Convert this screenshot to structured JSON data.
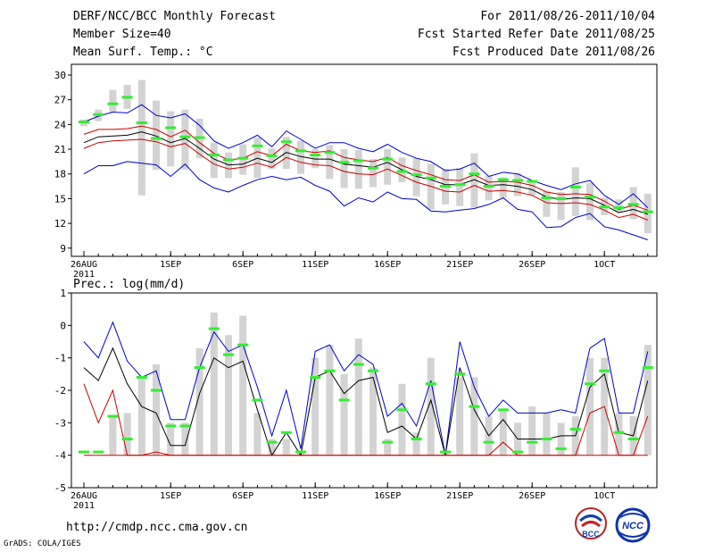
{
  "header": {
    "title": "DERF/NCC/BCC Monthly Forecast",
    "member_size": "Member Size=40",
    "variable": "Mean Surf. Temp.: °C",
    "period": "For 2011/08/26-2011/10/04",
    "start_date": "Fcst Started Refer Date 2011/08/25",
    "produced_date": "Fcst Produced Date 2011/08/26"
  },
  "footer": {
    "url": "http://cmdp.ncc.cma.gov.cn",
    "credit": "GrADS: COLA/IGES",
    "logo_bcc": "BCC",
    "logo_ncc": "NCC"
  },
  "colors": {
    "envelope": "#0000cc",
    "percentile": "#cc0000",
    "mean": "#000000",
    "box": "#d3d3d3",
    "median": "#33ee33"
  },
  "chart_data": [
    {
      "type": "line",
      "id": "temperature",
      "title": "Mean Surf. Temp.: °C",
      "x": [
        "08/26",
        "08/27",
        "08/28",
        "08/29",
        "08/30",
        "08/31",
        "09/01",
        "09/02",
        "09/03",
        "09/04",
        "09/05",
        "09/06",
        "09/07",
        "09/08",
        "09/09",
        "09/10",
        "09/11",
        "09/12",
        "09/13",
        "09/14",
        "09/15",
        "09/16",
        "09/17",
        "09/18",
        "09/19",
        "09/20",
        "09/21",
        "09/22",
        "09/23",
        "09/24",
        "09/25",
        "09/26",
        "09/27",
        "09/28",
        "09/29",
        "09/30",
        "10/01",
        "10/02",
        "10/03",
        "10/04"
      ],
      "x_ticks": [
        "26AUG\n2011",
        "1SEP",
        "6SEP",
        "11SEP",
        "16SEP",
        "21SEP",
        "26SEP",
        "1OCT"
      ],
      "y_ticks": [
        9,
        12,
        15,
        18,
        21,
        24,
        27,
        30
      ],
      "ylim": [
        8,
        31.3
      ],
      "series": [
        {
          "name": "max",
          "values": [
            24.3,
            25.0,
            25.5,
            25.4,
            26.4,
            25.1,
            24.8,
            25.3,
            23.9,
            22.0,
            21.1,
            21.8,
            22.7,
            21.3,
            23.2,
            22.2,
            21.1,
            21.8,
            21.8,
            21.1,
            20.7,
            21.6,
            20.6,
            19.9,
            19.5,
            18.4,
            18.6,
            19.3,
            17.7,
            18.2,
            18.0,
            17.2,
            16.6,
            16.1,
            16.8,
            17.2,
            15.4,
            14.3,
            15.6,
            13.9
          ]
        },
        {
          "name": "p90",
          "values": [
            22.8,
            23.4,
            23.4,
            23.5,
            23.8,
            23.4,
            22.5,
            23.3,
            21.8,
            20.5,
            19.7,
            19.9,
            20.7,
            20.2,
            21.6,
            20.8,
            20.6,
            20.8,
            20.0,
            19.7,
            19.5,
            20.0,
            19.0,
            18.4,
            17.9,
            17.3,
            17.2,
            17.9,
            17.0,
            17.1,
            17.0,
            16.6,
            15.8,
            15.5,
            15.6,
            15.5,
            14.7,
            13.7,
            14.2,
            13.6
          ]
        },
        {
          "name": "mean",
          "values": [
            21.8,
            22.5,
            22.6,
            22.7,
            23.1,
            22.6,
            21.8,
            22.3,
            21.1,
            19.8,
            19.1,
            19.2,
            19.9,
            19.4,
            20.6,
            20.1,
            19.8,
            19.8,
            19.2,
            19.0,
            18.8,
            19.4,
            18.5,
            17.7,
            17.3,
            16.7,
            16.7,
            17.3,
            16.6,
            16.7,
            16.5,
            16.1,
            15.2,
            14.9,
            15.1,
            15.0,
            14.2,
            13.3,
            13.7,
            13.1
          ]
        },
        {
          "name": "p10",
          "values": [
            21.1,
            21.8,
            22.0,
            22.1,
            22.2,
            21.9,
            21.3,
            21.7,
            20.4,
            19.2,
            18.6,
            18.8,
            19.3,
            18.8,
            20.0,
            19.4,
            19.1,
            19.0,
            18.3,
            18.0,
            17.9,
            18.6,
            17.8,
            17.0,
            16.5,
            15.9,
            15.8,
            16.6,
            15.9,
            16.0,
            15.8,
            15.4,
            14.5,
            14.4,
            14.5,
            14.3,
            13.6,
            12.7,
            13.1,
            12.4
          ]
        },
        {
          "name": "min",
          "values": [
            18.0,
            19.0,
            19.0,
            19.5,
            19.3,
            19.1,
            17.7,
            19.2,
            17.3,
            16.3,
            15.8,
            16.6,
            17.3,
            17.7,
            17.3,
            17.6,
            16.6,
            15.9,
            14.1,
            15.1,
            14.6,
            15.8,
            15.0,
            14.9,
            13.5,
            13.4,
            13.6,
            13.8,
            14.3,
            15.1,
            13.7,
            13.4,
            11.5,
            11.6,
            12.7,
            13.2,
            11.6,
            11.2,
            10.6,
            10.0
          ]
        }
      ],
      "boxes": [
        {
          "lo": 23.8,
          "hi": 24.6
        },
        {
          "lo": 24.4,
          "hi": 25.8
        },
        {
          "lo": 25.5,
          "hi": 28.2
        },
        {
          "lo": 25.9,
          "hi": 28.8
        },
        {
          "lo": 15.4,
          "hi": 29.4
        },
        {
          "lo": 18.5,
          "hi": 26.9
        },
        {
          "lo": 18.9,
          "hi": 25.6
        },
        {
          "lo": 18.5,
          "hi": 25.8
        },
        {
          "lo": 19.9,
          "hi": 24.7
        },
        {
          "lo": 17.5,
          "hi": 21.8
        },
        {
          "lo": 17.5,
          "hi": 20.6
        },
        {
          "lo": 17.9,
          "hi": 21.6
        },
        {
          "lo": 17.5,
          "hi": 22.4
        },
        {
          "lo": 18.6,
          "hi": 21.1
        },
        {
          "lo": 18.6,
          "hi": 22.5
        },
        {
          "lo": 18.0,
          "hi": 22.0
        },
        {
          "lo": 18.7,
          "hi": 21.0
        },
        {
          "lo": 17.4,
          "hi": 21.5
        },
        {
          "lo": 16.3,
          "hi": 21.0
        },
        {
          "lo": 16.2,
          "hi": 20.9
        },
        {
          "lo": 16.4,
          "hi": 19.8
        },
        {
          "lo": 16.7,
          "hi": 21.0
        },
        {
          "lo": 17.0,
          "hi": 20.0
        },
        {
          "lo": 15.3,
          "hi": 19.9
        },
        {
          "lo": 13.7,
          "hi": 19.2
        },
        {
          "lo": 14.3,
          "hi": 18.6
        },
        {
          "lo": 14.1,
          "hi": 18.7
        },
        {
          "lo": 13.9,
          "hi": 20.5
        },
        {
          "lo": 14.8,
          "hi": 17.8
        },
        {
          "lo": 15.1,
          "hi": 17.6
        },
        {
          "lo": 15.3,
          "hi": 18.1
        },
        {
          "lo": 15.4,
          "hi": 17.0
        },
        {
          "lo": 12.8,
          "hi": 15.9
        },
        {
          "lo": 12.4,
          "hi": 15.8
        },
        {
          "lo": 12.9,
          "hi": 18.8
        },
        {
          "lo": 12.4,
          "hi": 16.9
        },
        {
          "lo": 13.0,
          "hi": 15.1
        },
        {
          "lo": 13.4,
          "hi": 14.9
        },
        {
          "lo": 12.5,
          "hi": 16.4
        },
        {
          "lo": 10.8,
          "hi": 15.6
        }
      ],
      "medians": [
        24.3,
        25.2,
        26.5,
        27.3,
        24.2,
        22.3,
        23.6,
        22.5,
        22.4,
        20.3,
        19.7,
        19.9,
        21.4,
        20.2,
        21.9,
        20.8,
        20.3,
        20.6,
        19.4,
        19.6,
        18.7,
        19.8,
        18.3,
        17.9,
        17.5,
        16.5,
        16.7,
        18.0,
        16.5,
        17.3,
        17.2,
        17.1,
        15.1,
        15.0,
        16.4,
        15.2,
        14.0,
        13.9,
        14.3,
        13.4
      ]
    },
    {
      "type": "line",
      "id": "precipitation",
      "title": "Prec.: log(mm/d)",
      "x": [
        "08/26",
        "08/27",
        "08/28",
        "08/29",
        "08/30",
        "08/31",
        "09/01",
        "09/02",
        "09/03",
        "09/04",
        "09/05",
        "09/06",
        "09/07",
        "09/08",
        "09/09",
        "09/10",
        "09/11",
        "09/12",
        "09/13",
        "09/14",
        "09/15",
        "09/16",
        "09/17",
        "09/18",
        "09/19",
        "09/20",
        "09/21",
        "09/22",
        "09/23",
        "09/24",
        "09/25",
        "09/26",
        "09/27",
        "09/28",
        "09/29",
        "09/30",
        "10/01",
        "10/02",
        "10/03",
        "10/04"
      ],
      "x_ticks": [
        "26AUG\n2011",
        "1SEP",
        "6SEP",
        "11SEP",
        "16SEP",
        "21SEP",
        "26SEP",
        "1OCT"
      ],
      "y_ticks": [
        -5,
        -4,
        -3,
        -2,
        -1,
        0,
        1
      ],
      "ylim": [
        -5,
        1
      ],
      "floor": -4,
      "series": [
        {
          "name": "max",
          "values": [
            -0.5,
            -1.0,
            0.1,
            -1.1,
            -1.6,
            -1.4,
            -2.9,
            -2.9,
            -1.3,
            -0.2,
            -0.8,
            -0.6,
            -1.9,
            -3.4,
            -2.0,
            -3.8,
            -0.8,
            -0.6,
            -1.4,
            -0.9,
            -1.2,
            -2.8,
            -2.4,
            -3.1,
            -1.7,
            -4.0,
            -0.5,
            -1.9,
            -2.8,
            -2.3,
            -2.7,
            -2.7,
            -2.7,
            -2.6,
            -2.7,
            -0.7,
            -0.4,
            -2.7,
            -2.7,
            -0.8
          ]
        },
        {
          "name": "mean",
          "values": [
            -1.3,
            -1.7,
            -0.7,
            -1.8,
            -2.5,
            -2.7,
            -3.7,
            -3.7,
            -2.1,
            -1.0,
            -1.3,
            -1.1,
            -2.6,
            -4.0,
            -3.3,
            -4.0,
            -1.6,
            -1.4,
            -2.1,
            -1.7,
            -1.6,
            -3.3,
            -3.1,
            -3.5,
            -2.3,
            -4.0,
            -1.3,
            -2.6,
            -3.4,
            -2.9,
            -3.5,
            -3.5,
            -3.5,
            -3.4,
            -3.4,
            -1.9,
            -1.5,
            -3.3,
            -3.4,
            -1.7
          ]
        },
        {
          "name": "p10",
          "values": [
            -1.8,
            -3.0,
            -2.0,
            -4.0,
            -4.0,
            -3.9,
            -4.0,
            -4.0,
            -4.0,
            -4.0,
            -4.0,
            -4.0,
            -4.0,
            -4.0,
            -4.0,
            -4.0,
            -4.0,
            -4.0,
            -4.0,
            -4.0,
            -4.0,
            -4.0,
            -4.0,
            -4.0,
            -4.0,
            -4.0,
            -4.0,
            -4.0,
            -4.0,
            -3.6,
            -4.0,
            -4.0,
            -4.0,
            -4.0,
            -4.0,
            -2.7,
            -2.5,
            -4.0,
            -4.0,
            -2.8
          ]
        },
        {
          "name": "floor",
          "values": [
            -4.0,
            -4.0,
            -4.0,
            -4.0,
            -4.0,
            -4.0,
            -4.0,
            -4.0,
            -4.0,
            -4.0,
            -4.0,
            -4.0,
            -4.0,
            -4.0,
            -4.0,
            -4.0,
            -4.0,
            -4.0,
            -4.0,
            -4.0,
            -4.0,
            -4.0,
            -4.0,
            -4.0,
            -4.0,
            -4.0,
            -4.0,
            -4.0,
            -4.0,
            -4.0,
            -4.0,
            -4.0,
            -4.0,
            -4.0,
            -4.0,
            -4.0,
            -4.0,
            -4.0,
            -4.0,
            -4.0
          ]
        }
      ],
      "boxes": [
        {
          "lo": -4,
          "hi": -4
        },
        {
          "lo": -4,
          "hi": -4
        },
        {
          "lo": -4,
          "hi": -2.8
        },
        {
          "lo": -4,
          "hi": -2.7
        },
        {
          "lo": -4,
          "hi": -1.6
        },
        {
          "lo": -4,
          "hi": -1.2
        },
        {
          "lo": -4,
          "hi": -3.0
        },
        {
          "lo": -4,
          "hi": -3.0
        },
        {
          "lo": -4,
          "hi": -0.7
        },
        {
          "lo": -4,
          "hi": 0.4
        },
        {
          "lo": -4,
          "hi": -0.3
        },
        {
          "lo": -4,
          "hi": 0.3
        },
        {
          "lo": -4,
          "hi": -2.7
        },
        {
          "lo": -4,
          "hi": -3.5
        },
        {
          "lo": -4,
          "hi": -3.5
        },
        {
          "lo": -4,
          "hi": -3.9
        },
        {
          "lo": -4,
          "hi": -1.0
        },
        {
          "lo": -4,
          "hi": -0.6
        },
        {
          "lo": -4,
          "hi": -1.5
        },
        {
          "lo": -4,
          "hi": -0.4
        },
        {
          "lo": -4,
          "hi": -1.3
        },
        {
          "lo": -4,
          "hi": -3.5
        },
        {
          "lo": -4,
          "hi": -1.8
        },
        {
          "lo": -4,
          "hi": -3.3
        },
        {
          "lo": -4,
          "hi": -1.0
        },
        {
          "lo": -4,
          "hi": -3.9
        },
        {
          "lo": -4,
          "hi": -1.6
        },
        {
          "lo": -4,
          "hi": -1.6
        },
        {
          "lo": -4,
          "hi": -2.8
        },
        {
          "lo": -4,
          "hi": -2.6
        },
        {
          "lo": -4,
          "hi": -3.0
        },
        {
          "lo": -4,
          "hi": -2.5
        },
        {
          "lo": -4,
          "hi": -2.7
        },
        {
          "lo": -4,
          "hi": -3.0
        },
        {
          "lo": -4,
          "hi": -2.8
        },
        {
          "lo": -4,
          "hi": -1.0
        },
        {
          "lo": -4,
          "hi": -1.0
        },
        {
          "lo": -4,
          "hi": -2.7
        },
        {
          "lo": -4,
          "hi": -2.8
        },
        {
          "lo": -4,
          "hi": -0.6
        }
      ],
      "medians": [
        -3.9,
        -3.9,
        -2.8,
        -3.5,
        -1.6,
        -2.0,
        -3.1,
        -3.1,
        -1.3,
        -0.1,
        -0.9,
        -0.6,
        -2.3,
        -3.6,
        -3.3,
        -3.9,
        -1.6,
        -1.4,
        -2.3,
        -1.2,
        -1.4,
        -3.6,
        -2.6,
        -3.5,
        -1.8,
        -3.9,
        -1.5,
        -2.5,
        -3.6,
        -2.6,
        -3.9,
        -3.6,
        -3.5,
        -3.8,
        -3.2,
        -1.8,
        -1.4,
        -3.3,
        -3.5,
        -1.3
      ]
    }
  ]
}
